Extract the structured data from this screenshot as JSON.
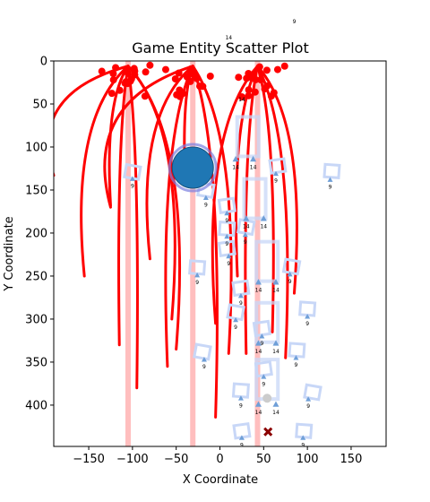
{
  "chart_data": {
    "type": "scatter",
    "title": "Game Entity Scatter Plot",
    "xlabel": "X Coordinate",
    "ylabel": "Y Coordinate",
    "xlim": [
      -190,
      190
    ],
    "ylim": [
      448,
      0
    ],
    "y_inverted": true,
    "grid": false,
    "legend": "none",
    "x_ticks": [
      -150,
      -100,
      -50,
      0,
      50,
      100,
      150
    ],
    "x_tick_labels": [
      "−150",
      "−100",
      "−50",
      "0",
      "50",
      "100",
      "150"
    ],
    "y_ticks": [
      0,
      50,
      100,
      150,
      200,
      250,
      300,
      350,
      400
    ],
    "y_tick_labels": [
      "0",
      "50",
      "100",
      "150",
      "200",
      "250",
      "300",
      "350",
      "400"
    ],
    "colors": {
      "trail": "#ff0000",
      "beam": "#ffb3b3",
      "marker": "#6f9fd8",
      "box": "#c8d7f7",
      "player": "#1f77b4",
      "player_ring": "#7b7fe0",
      "hazard": "#8b0000",
      "pickup": "#cccccc"
    },
    "beams_x": [
      -105,
      -31,
      43
    ],
    "emitters_x": [
      -105,
      -31,
      43
    ],
    "emitter_clusters": [
      {
        "x": -105,
        "y": 12
      },
      {
        "x": -31,
        "y": 12
      },
      {
        "x": 43,
        "y": 12
      }
    ],
    "trails": [
      {
        "x0": -105,
        "x1": -190,
        "y1": 133
      },
      {
        "x0": -105,
        "x1": -125,
        "y1": 168
      },
      {
        "x0": -105,
        "x1": -155,
        "y1": 250
      },
      {
        "x0": -105,
        "x1": -115,
        "y1": 330
      },
      {
        "x0": -105,
        "x1": -95,
        "y1": 380
      },
      {
        "x0": -105,
        "x1": -50,
        "y1": 335
      },
      {
        "x0": -105,
        "x1": -55,
        "y1": 300
      },
      {
        "x0": -31,
        "x1": -125,
        "y1": 170
      },
      {
        "x0": -31,
        "x1": -80,
        "y1": 230
      },
      {
        "x0": -31,
        "x1": -60,
        "y1": 355
      },
      {
        "x0": -31,
        "x1": -5,
        "y1": 414
      },
      {
        "x0": -31,
        "x1": 10,
        "y1": 340
      },
      {
        "x0": -31,
        "x1": -40,
        "y1": 132
      },
      {
        "x0": 43,
        "x1": -5,
        "y1": 305
      },
      {
        "x0": 43,
        "x1": 30,
        "y1": 340
      },
      {
        "x0": 43,
        "x1": 75,
        "y1": 345
      },
      {
        "x0": 43,
        "x1": 60,
        "y1": 315
      },
      {
        "x0": 43,
        "x1": 85,
        "y1": 270
      },
      {
        "x0": 43,
        "x1": 20,
        "y1": 250
      }
    ],
    "player": {
      "x": -31,
      "y": 124
    },
    "hazard": {
      "x": 55,
      "y": 431
    },
    "pickup": {
      "x": 54,
      "y": 392
    },
    "markers_large": {
      "label": "14",
      "points": [
        {
          "x": 18,
          "y": 114
        },
        {
          "x": 38,
          "y": 114
        },
        {
          "x": 30,
          "y": 183
        },
        {
          "x": 50,
          "y": 183
        },
        {
          "x": 44,
          "y": 257
        },
        {
          "x": 64,
          "y": 257
        },
        {
          "x": 44,
          "y": 328
        },
        {
          "x": 64,
          "y": 328
        },
        {
          "x": 44,
          "y": 399
        },
        {
          "x": 64,
          "y": 399
        }
      ],
      "offscreen_labels": [
        {
          "x": 10,
          "y": -25
        },
        {
          "x": 25,
          "y": 47
        }
      ]
    },
    "markers_small": {
      "label": "9",
      "points": [
        {
          "x": -100,
          "y": 137
        },
        {
          "x": 64,
          "y": 131
        },
        {
          "x": 126,
          "y": 138
        },
        {
          "x": -16,
          "y": 159
        },
        {
          "x": 8,
          "y": 177
        },
        {
          "x": 8,
          "y": 204
        },
        {
          "x": 29,
          "y": 202
        },
        {
          "x": 10,
          "y": 227
        },
        {
          "x": -26,
          "y": 249
        },
        {
          "x": 80,
          "y": 248
        },
        {
          "x": 24,
          "y": 273
        },
        {
          "x": 100,
          "y": 297
        },
        {
          "x": 18,
          "y": 301
        },
        {
          "x": 48,
          "y": 320
        },
        {
          "x": 87,
          "y": 345
        },
        {
          "x": -18,
          "y": 347
        },
        {
          "x": 50,
          "y": 367
        },
        {
          "x": 24,
          "y": 392
        },
        {
          "x": 101,
          "y": 393
        },
        {
          "x": 25,
          "y": 438
        },
        {
          "x": 95,
          "y": 438
        }
      ],
      "offscreen_labels": [
        {
          "x": 85,
          "y": -44
        }
      ]
    },
    "boxes_small": [
      {
        "x": -100,
        "y": 129
      },
      {
        "x": 66,
        "y": 122
      },
      {
        "x": 128,
        "y": 128
      },
      {
        "x": -16,
        "y": 150
      },
      {
        "x": 8,
        "y": 168
      },
      {
        "x": 8,
        "y": 195
      },
      {
        "x": 30,
        "y": 193
      },
      {
        "x": 8,
        "y": 218
      },
      {
        "x": -26,
        "y": 240
      },
      {
        "x": 82,
        "y": 239
      },
      {
        "x": 24,
        "y": 264
      },
      {
        "x": 100,
        "y": 288
      },
      {
        "x": 18,
        "y": 292
      },
      {
        "x": 48,
        "y": 311
      },
      {
        "x": 88,
        "y": 336
      },
      {
        "x": -20,
        "y": 338
      },
      {
        "x": 50,
        "y": 358
      },
      {
        "x": 24,
        "y": 383
      },
      {
        "x": 106,
        "y": 385
      },
      {
        "x": 25,
        "y": 430
      },
      {
        "x": 96,
        "y": 430
      }
    ],
    "boxes_large": [
      {
        "x": 32,
        "y": 88
      },
      {
        "x": 40,
        "y": 160
      },
      {
        "x": 54,
        "y": 233
      },
      {
        "x": 54,
        "y": 304
      },
      {
        "x": 54,
        "y": 370
      }
    ]
  }
}
